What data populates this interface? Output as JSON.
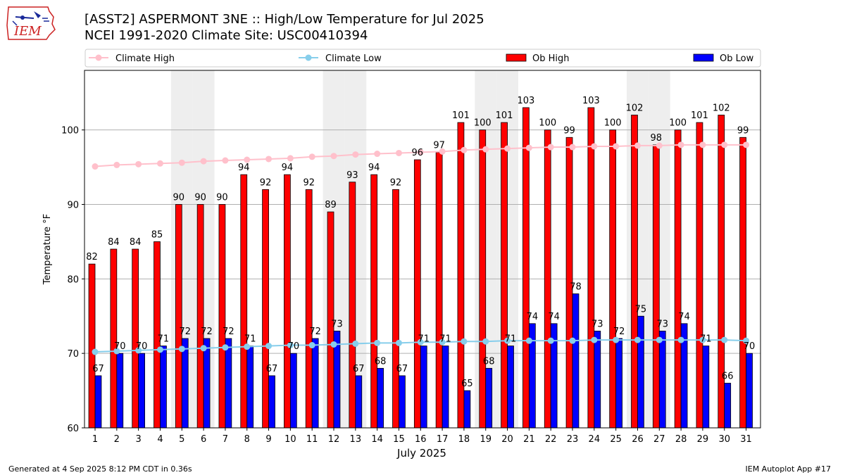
{
  "header": {
    "title_line1": "[ASST2] ASPERMONT 3NE :: High/Low Temperature for Jul 2025",
    "title_line2": "NCEI 1991-2020 Climate Site: USC00410394",
    "logo_text": "IEM"
  },
  "footer": {
    "generated": "Generated at 4 Sep 2025 8:12 PM CDT in 0.36s",
    "app": "IEM Autoplot App #17"
  },
  "colors": {
    "ob_high": "#ff0000",
    "ob_low": "#0000ff",
    "climate_high": "#ffc0cb",
    "climate_low": "#87ceeb",
    "weekend_shade": "#eeeeee"
  },
  "chart_data": {
    "type": "bar",
    "xlabel": "July 2025",
    "ylabel": "Temperature °F",
    "ylim": [
      60,
      108
    ],
    "yticks": [
      60,
      70,
      80,
      90,
      100
    ],
    "grid": "horizontal",
    "legend_placement": "top",
    "categories": [
      "1",
      "2",
      "3",
      "4",
      "5",
      "6",
      "7",
      "8",
      "9",
      "10",
      "11",
      "12",
      "13",
      "14",
      "15",
      "16",
      "17",
      "18",
      "19",
      "20",
      "21",
      "22",
      "23",
      "24",
      "25",
      "26",
      "27",
      "28",
      "29",
      "30",
      "31"
    ],
    "shaded_days": [
      5,
      6,
      12,
      13,
      19,
      20,
      26,
      27
    ],
    "series": [
      {
        "name": "Climate High",
        "kind": "line",
        "values": [
          95.1,
          95.3,
          95.4,
          95.5,
          95.6,
          95.8,
          95.9,
          96.0,
          96.1,
          96.2,
          96.4,
          96.5,
          96.7,
          96.8,
          96.9,
          97.0,
          97.1,
          97.3,
          97.4,
          97.5,
          97.6,
          97.7,
          97.7,
          97.8,
          97.8,
          97.9,
          97.9,
          98.0,
          98.0,
          98.0,
          98.0
        ]
      },
      {
        "name": "Climate Low",
        "kind": "line",
        "values": [
          70.2,
          70.3,
          70.4,
          70.5,
          70.6,
          70.7,
          70.8,
          70.9,
          71.0,
          71.1,
          71.1,
          71.2,
          71.3,
          71.4,
          71.4,
          71.5,
          71.5,
          71.6,
          71.6,
          71.7,
          71.7,
          71.7,
          71.7,
          71.8,
          71.8,
          71.8,
          71.8,
          71.8,
          71.8,
          71.8,
          71.7
        ]
      },
      {
        "name": "Ob High",
        "kind": "bar",
        "values": [
          82,
          84,
          84,
          85,
          90,
          90,
          90,
          94,
          92,
          94,
          92,
          89,
          93,
          94,
          92,
          96,
          97,
          101,
          100,
          101,
          103,
          100,
          99,
          103,
          100,
          102,
          98,
          100,
          101,
          102,
          99
        ]
      },
      {
        "name": "Ob Low",
        "kind": "bar",
        "values": [
          67,
          70,
          70,
          71,
          72,
          72,
          72,
          71,
          67,
          70,
          72,
          73,
          67,
          68,
          67,
          71,
          71,
          65,
          68,
          71,
          74,
          74,
          78,
          73,
          72,
          75,
          73,
          74,
          71,
          66,
          70
        ]
      }
    ]
  }
}
